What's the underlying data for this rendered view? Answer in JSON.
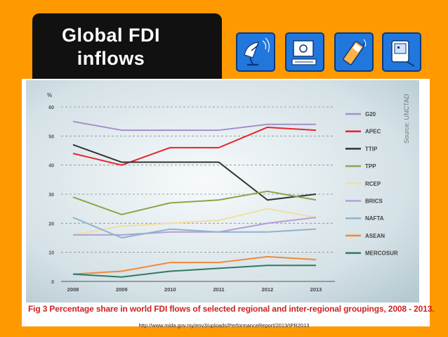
{
  "slide": {
    "title": "Global FDI inflows",
    "caption": "Fig 3 Percentage share in world FDI flows of selected regional and inter-regional groupings, 2008 - 2013.",
    "source_url": "http://www.mida.gov.my/env3/uploads/PerformanceReport/2013/IPR2013",
    "icons": [
      "satellite-dish-icon",
      "computer-monitor-icon",
      "mobile-phone-icon",
      "handheld-device-icon"
    ]
  },
  "chart_data": {
    "type": "line",
    "title": "",
    "xlabel": "",
    "ylabel": "%",
    "source_note": "Source: UNCTAD",
    "x": [
      "2008",
      "2009",
      "2010",
      "2011",
      "2012",
      "2013"
    ],
    "ylim": [
      0,
      60
    ],
    "yticks": [
      0,
      10,
      20,
      30,
      40,
      50,
      60
    ],
    "grid": true,
    "legend_position": "right",
    "series": [
      {
        "name": "G20",
        "color": "#a48fcb",
        "values": [
          55,
          52,
          52,
          52,
          54,
          54
        ]
      },
      {
        "name": "APEC",
        "color": "#e8232b",
        "values": [
          44,
          40,
          46,
          46,
          53,
          52
        ]
      },
      {
        "name": "TTIP",
        "color": "#333333",
        "values": [
          47,
          41,
          41,
          41,
          28,
          30
        ]
      },
      {
        "name": "TPP",
        "color": "#8da547",
        "values": [
          29,
          23,
          27,
          28,
          31,
          28
        ]
      },
      {
        "name": "RCEP",
        "color": "#efdfa0",
        "values": [
          16,
          19,
          20,
          21,
          25,
          22
        ]
      },
      {
        "name": "BRICS",
        "color": "#b3a0d3",
        "values": [
          16,
          16,
          17,
          17,
          20,
          22
        ]
      },
      {
        "name": "NAFTA",
        "color": "#8fb2d1",
        "values": [
          22,
          15,
          18,
          17,
          17,
          18
        ]
      },
      {
        "name": "ASEAN",
        "color": "#f08a3a",
        "values": [
          2.5,
          3.5,
          6.5,
          6.5,
          8.5,
          7.5
        ]
      },
      {
        "name": "MERCOSUR",
        "color": "#2f7a66",
        "values": [
          2.5,
          1.5,
          3.5,
          4.5,
          5.5,
          5.5
        ]
      }
    ]
  }
}
